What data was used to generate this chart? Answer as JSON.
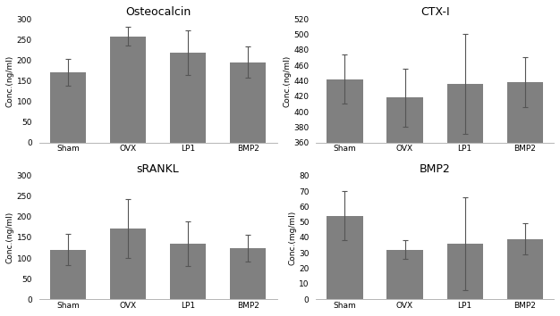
{
  "subplots": [
    {
      "title": "Osteocalcin",
      "ylabel": "Conc.(ng/ml)",
      "categories": [
        "Sham",
        "OVX",
        "LP1",
        "BMP2"
      ],
      "values": [
        170,
        258,
        218,
        195
      ],
      "errors": [
        32,
        22,
        55,
        38
      ],
      "ylim": [
        0,
        300
      ],
      "yticks": [
        0,
        50,
        100,
        150,
        200,
        250,
        300
      ]
    },
    {
      "title": "CTX-I",
      "ylabel": "Conc.(ng/ml)",
      "categories": [
        "Sham",
        "OVX",
        "LP1",
        "BMP2"
      ],
      "values": [
        442,
        418,
        436,
        438
      ],
      "errors": [
        32,
        38,
        65,
        32
      ],
      "ylim": [
        360,
        520
      ],
      "yticks": [
        360,
        380,
        400,
        420,
        440,
        460,
        480,
        500,
        520
      ]
    },
    {
      "title": "sRANKL",
      "ylabel": "Conc.(ng/ml)",
      "categories": [
        "Sham",
        "OVX",
        "LP1",
        "BMP2"
      ],
      "values": [
        120,
        172,
        135,
        124
      ],
      "errors": [
        38,
        72,
        55,
        32
      ],
      "ylim": [
        0,
        300
      ],
      "yticks": [
        0,
        50,
        100,
        150,
        200,
        250,
        300
      ]
    },
    {
      "title": "BMP2",
      "ylabel": "Conc.(mg/ml)",
      "categories": [
        "Sham",
        "OVX",
        "LP1",
        "BMP2"
      ],
      "values": [
        54,
        32,
        36,
        39
      ],
      "errors": [
        16,
        6,
        30,
        10
      ],
      "ylim": [
        0,
        80
      ],
      "yticks": [
        0,
        10,
        20,
        30,
        40,
        50,
        60,
        70,
        80
      ]
    }
  ],
  "bar_color": "#808080",
  "bar_edge_color": "#808080",
  "error_color": "#555555",
  "bar_width": 0.6,
  "title_fontsize": 9,
  "tick_fontsize": 6.5,
  "label_fontsize": 6.5,
  "fig_bgcolor": "#ffffff"
}
